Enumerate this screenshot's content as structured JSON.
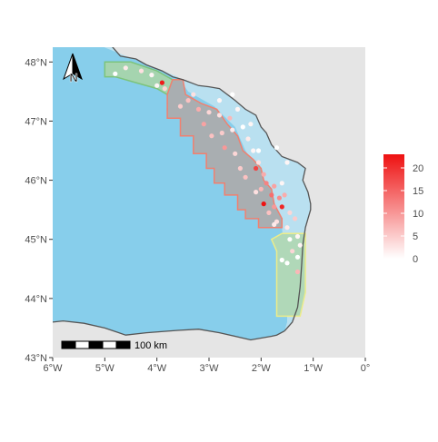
{
  "map": {
    "lon_range": [
      -6,
      0
    ],
    "lat_range": [
      43,
      48.25
    ],
    "x_ticks": [
      {
        "value": -6,
        "label": "6°W"
      },
      {
        "value": -5,
        "label": "5°W"
      },
      {
        "value": -4,
        "label": "4°W"
      },
      {
        "value": -3,
        "label": "3°W"
      },
      {
        "value": -2,
        "label": "2°W"
      },
      {
        "value": -1,
        "label": "1°W"
      },
      {
        "value": 0,
        "label": "0°"
      }
    ],
    "y_ticks": [
      {
        "value": 48,
        "label": "48°N"
      },
      {
        "value": 47,
        "label": "47°N"
      },
      {
        "value": 46,
        "label": "46°N"
      },
      {
        "value": 45,
        "label": "45°N"
      },
      {
        "value": 44,
        "label": "44°N"
      },
      {
        "value": 43,
        "label": "43°N"
      }
    ],
    "colors": {
      "sea": "#87ceeb",
      "land": "#e5e5e5",
      "coast": "#555555",
      "zone_green_fill": "#a8d5a8",
      "zone_green_stroke": "#7cc47c",
      "zone_red_fill": "#a9aeb1",
      "zone_red_stroke": "#f08070",
      "zone_yellow_fill": "#b0d8b8",
      "zone_yellow_stroke": "#ecec8a",
      "shelf_fill": "#b9e0f0"
    },
    "north_arrow": {
      "label": "N"
    },
    "scale_bar": {
      "label": "100 km"
    },
    "legend": {
      "ticks": [
        {
          "value": 20,
          "label": "20"
        },
        {
          "value": 15,
          "label": "15"
        },
        {
          "value": 10,
          "label": "10"
        },
        {
          "value": 5,
          "label": "5"
        },
        {
          "value": 0,
          "label": "0"
        }
      ],
      "min": 0,
      "max": 23,
      "color_low": "#ffffff",
      "color_high": "#ee1111"
    },
    "coastline": [
      [
        -5.1,
        48.28
      ],
      [
        -4.9,
        48.3
      ],
      [
        -4.7,
        48.1
      ],
      [
        -4.4,
        48.05
      ],
      [
        -4.2,
        47.95
      ],
      [
        -3.9,
        47.85
      ],
      [
        -3.7,
        47.75
      ],
      [
        -3.5,
        47.7
      ],
      [
        -3.2,
        47.6
      ],
      [
        -3.0,
        47.58
      ],
      [
        -2.8,
        47.55
      ],
      [
        -2.5,
        47.35
      ],
      [
        -2.3,
        47.2
      ],
      [
        -2.1,
        47.1
      ],
      [
        -2.0,
        46.9
      ],
      [
        -1.9,
        46.8
      ],
      [
        -1.8,
        46.6
      ],
      [
        -1.6,
        46.4
      ],
      [
        -1.3,
        46.3
      ],
      [
        -1.15,
        46.2
      ],
      [
        -1.2,
        46.0
      ],
      [
        -1.1,
        45.8
      ],
      [
        -1.05,
        45.6
      ],
      [
        -1.05,
        45.5
      ],
      [
        -1.1,
        45.35
      ],
      [
        -1.15,
        45.2
      ],
      [
        -1.2,
        44.9
      ],
      [
        -1.22,
        44.6
      ],
      [
        -1.25,
        44.2
      ],
      [
        -1.3,
        43.85
      ],
      [
        -1.4,
        43.6
      ],
      [
        -1.5,
        43.5
      ],
      [
        -1.55,
        43.45
      ]
    ],
    "island_coast": [
      [
        -1.55,
        43.45
      ],
      [
        -1.7,
        43.38
      ],
      [
        -1.8,
        43.36
      ],
      [
        -2.2,
        43.3
      ],
      [
        -2.8,
        43.42
      ],
      [
        -3.2,
        43.48
      ],
      [
        -3.6,
        43.46
      ],
      [
        -4.2,
        43.42
      ],
      [
        -4.6,
        43.38
      ],
      [
        -5.0,
        43.5
      ],
      [
        -5.4,
        43.58
      ],
      [
        -5.8,
        43.62
      ],
      [
        -6.0,
        43.6
      ]
    ],
    "zones": {
      "green_north": [
        [
          -5.0,
          48.0
        ],
        [
          -4.5,
          48.0
        ],
        [
          -4.0,
          47.85
        ],
        [
          -3.7,
          47.7
        ],
        [
          -3.8,
          47.45
        ],
        [
          -4.0,
          47.55
        ],
        [
          -4.4,
          47.65
        ],
        [
          -4.8,
          47.75
        ],
        [
          -5.0,
          47.75
        ]
      ],
      "red_shelf": [
        [
          -3.7,
          47.7
        ],
        [
          -3.5,
          47.7
        ],
        [
          -3.45,
          47.45
        ],
        [
          -3.15,
          47.3
        ],
        [
          -2.85,
          47.2
        ],
        [
          -2.65,
          46.95
        ],
        [
          -2.45,
          46.75
        ],
        [
          -2.35,
          46.5
        ],
        [
          -2.15,
          46.35
        ],
        [
          -2.0,
          46.2
        ],
        [
          -1.95,
          46.0
        ],
        [
          -1.8,
          45.85
        ],
        [
          -1.75,
          45.6
        ],
        [
          -1.6,
          45.35
        ],
        [
          -1.6,
          45.2
        ],
        [
          -2.05,
          45.2
        ],
        [
          -2.05,
          45.35
        ],
        [
          -2.3,
          45.35
        ],
        [
          -2.3,
          45.5
        ],
        [
          -2.45,
          45.5
        ],
        [
          -2.45,
          45.75
        ],
        [
          -2.7,
          45.75
        ],
        [
          -2.7,
          45.95
        ],
        [
          -2.9,
          45.95
        ],
        [
          -2.9,
          46.2
        ],
        [
          -3.05,
          46.2
        ],
        [
          -3.05,
          46.45
        ],
        [
          -3.3,
          46.45
        ],
        [
          -3.3,
          46.75
        ],
        [
          -3.55,
          46.75
        ],
        [
          -3.55,
          47.05
        ],
        [
          -3.8,
          47.05
        ],
        [
          -3.8,
          47.45
        ]
      ],
      "yellow_south": [
        [
          -1.6,
          45.1
        ],
        [
          -1.15,
          45.1
        ],
        [
          -1.15,
          44.1
        ],
        [
          -1.25,
          43.7
        ],
        [
          -1.7,
          43.7
        ],
        [
          -1.7,
          44.8
        ],
        [
          -1.8,
          45.0
        ]
      ]
    },
    "points": [
      {
        "lon": -4.6,
        "lat": 47.9,
        "v": 2
      },
      {
        "lon": -4.3,
        "lat": 47.85,
        "v": 3
      },
      {
        "lon": -4.1,
        "lat": 47.78,
        "v": 1
      },
      {
        "lon": -3.9,
        "lat": 47.65,
        "v": 22
      },
      {
        "lon": -3.85,
        "lat": 47.55,
        "v": 4
      },
      {
        "lon": -4.0,
        "lat": 47.6,
        "v": 1
      },
      {
        "lon": -4.8,
        "lat": 47.8,
        "v": 0
      },
      {
        "lon": -3.4,
        "lat": 47.35,
        "v": 6
      },
      {
        "lon": -3.55,
        "lat": 47.25,
        "v": 5
      },
      {
        "lon": -3.2,
        "lat": 47.2,
        "v": 8
      },
      {
        "lon": -3.0,
        "lat": 47.15,
        "v": 4
      },
      {
        "lon": -2.8,
        "lat": 47.1,
        "v": 3
      },
      {
        "lon": -2.6,
        "lat": 47.05,
        "v": 7
      },
      {
        "lon": -2.45,
        "lat": 47.2,
        "v": 1
      },
      {
        "lon": -3.1,
        "lat": 46.95,
        "v": 9
      },
      {
        "lon": -2.95,
        "lat": 46.75,
        "v": 6
      },
      {
        "lon": -2.75,
        "lat": 46.8,
        "v": 5
      },
      {
        "lon": -2.55,
        "lat": 46.85,
        "v": 2
      },
      {
        "lon": -2.35,
        "lat": 46.9,
        "v": 0
      },
      {
        "lon": -2.2,
        "lat": 46.95,
        "v": 1
      },
      {
        "lon": -2.7,
        "lat": 46.55,
        "v": 10
      },
      {
        "lon": -2.5,
        "lat": 46.45,
        "v": 4
      },
      {
        "lon": -2.15,
        "lat": 46.5,
        "v": 1
      },
      {
        "lon": -2.05,
        "lat": 46.3,
        "v": 3
      },
      {
        "lon": -2.1,
        "lat": 46.2,
        "v": 18
      },
      {
        "lon": -1.95,
        "lat": 46.1,
        "v": 8
      },
      {
        "lon": -2.3,
        "lat": 46.05,
        "v": 6
      },
      {
        "lon": -1.9,
        "lat": 45.95,
        "v": 12
      },
      {
        "lon": -2.0,
        "lat": 45.85,
        "v": 7
      },
      {
        "lon": -1.75,
        "lat": 45.9,
        "v": 9
      },
      {
        "lon": -1.65,
        "lat": 45.7,
        "v": 11
      },
      {
        "lon": -1.55,
        "lat": 45.75,
        "v": 8
      },
      {
        "lon": -1.95,
        "lat": 45.6,
        "v": 23
      },
      {
        "lon": -1.75,
        "lat": 45.55,
        "v": 10
      },
      {
        "lon": -1.6,
        "lat": 45.55,
        "v": 21
      },
      {
        "lon": -1.85,
        "lat": 45.45,
        "v": 6
      },
      {
        "lon": -1.45,
        "lat": 45.45,
        "v": 4
      },
      {
        "lon": -1.7,
        "lat": 45.3,
        "v": 3
      },
      {
        "lon": -1.35,
        "lat": 45.35,
        "v": 5
      },
      {
        "lon": -1.5,
        "lat": 45.2,
        "v": 2
      },
      {
        "lon": -1.3,
        "lat": 45.05,
        "v": 1
      },
      {
        "lon": -1.45,
        "lat": 45.0,
        "v": 0
      },
      {
        "lon": -1.25,
        "lat": 44.9,
        "v": 1
      },
      {
        "lon": -1.4,
        "lat": 44.8,
        "v": 4
      },
      {
        "lon": -1.3,
        "lat": 44.7,
        "v": 0
      },
      {
        "lon": -1.5,
        "lat": 44.6,
        "v": 0
      },
      {
        "lon": -1.3,
        "lat": 44.45,
        "v": 7
      },
      {
        "lon": -1.6,
        "lat": 44.65,
        "v": 0
      },
      {
        "lon": -1.75,
        "lat": 45.25,
        "v": 2
      },
      {
        "lon": -2.1,
        "lat": 45.8,
        "v": 3
      },
      {
        "lon": -1.5,
        "lat": 46.3,
        "v": 1
      },
      {
        "lon": -1.7,
        "lat": 46.55,
        "v": 0
      },
      {
        "lon": -2.25,
        "lat": 46.7,
        "v": 2
      },
      {
        "lon": -1.6,
        "lat": 45.95,
        "v": 1
      },
      {
        "lon": -2.55,
        "lat": 47.45,
        "v": 0
      },
      {
        "lon": -2.8,
        "lat": 47.35,
        "v": 1
      },
      {
        "lon": -3.3,
        "lat": 47.45,
        "v": 3
      },
      {
        "lon": -2.05,
        "lat": 46.5,
        "v": 0
      },
      {
        "lon": -2.4,
        "lat": 46.2,
        "v": 5
      },
      {
        "lon": -1.8,
        "lat": 45.75,
        "v": 14
      }
    ]
  }
}
